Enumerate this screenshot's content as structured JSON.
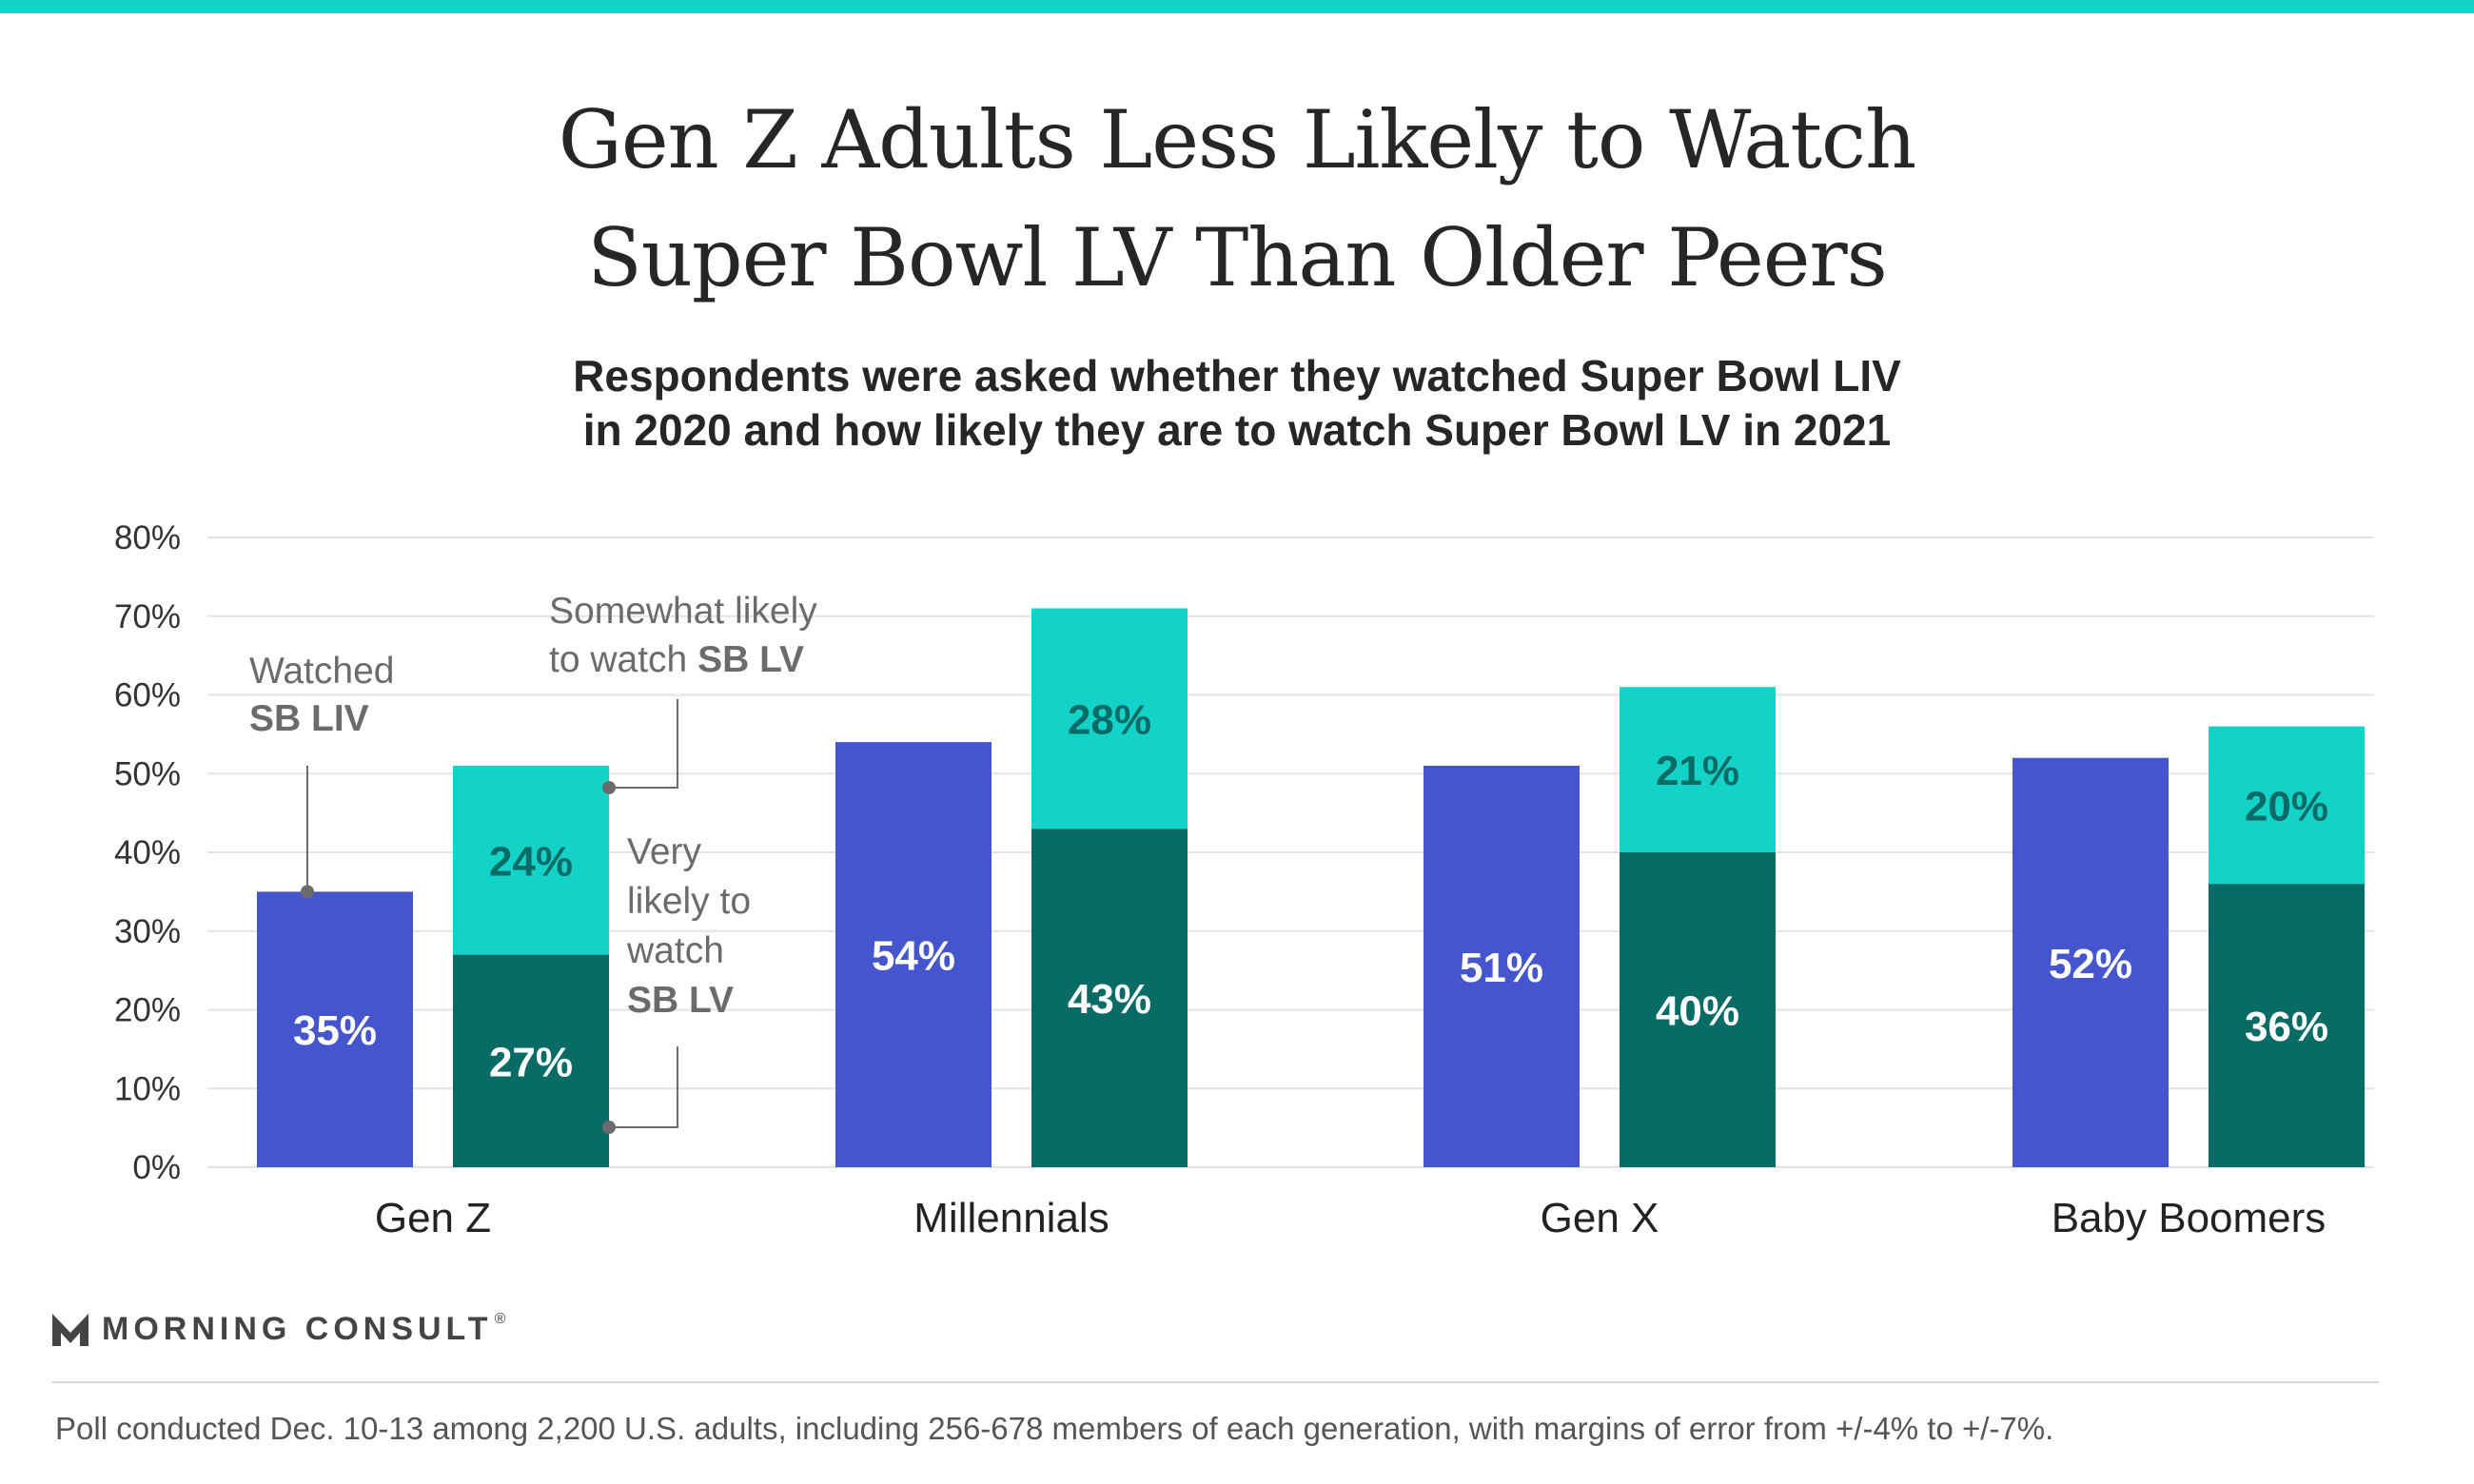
{
  "title_lines": [
    "Gen Z Adults Less Likely to Watch",
    "Super Bowl LV Than Older Peers"
  ],
  "subtitle_lines": [
    "Respondents were asked whether they watched Super Bowl LIV",
    "in 2020 and how likely they are to watch Super Bowl LV in 2021"
  ],
  "colors": {
    "watched": "#4555ce",
    "very_likely": "#086b66",
    "somewhat_likely": "#13d3c8",
    "grid": "#e3e3e3",
    "annotation": "#6b6b6b",
    "top_bar": "#13d3c8"
  },
  "chart_data": {
    "type": "bar",
    "categories": [
      "Gen Z",
      "Millennials",
      "Gen X",
      "Baby Boomers"
    ],
    "series": [
      {
        "name": "Watched SB LIV",
        "values": [
          35,
          54,
          51,
          52
        ],
        "labels": [
          "35%",
          "54%",
          "51%",
          "52%"
        ]
      },
      {
        "name": "Very likely to watch SB LV",
        "values": [
          27,
          43,
          40,
          36
        ],
        "labels": [
          "27%",
          "43%",
          "40%",
          "36%"
        ],
        "stack": "sb_lv"
      },
      {
        "name": "Somewhat likely to watch SB LV",
        "values": [
          24,
          28,
          21,
          20
        ],
        "labels": [
          "24%",
          "28%",
          "21%",
          "20%"
        ],
        "stack": "sb_lv"
      }
    ],
    "ylim": [
      0,
      80
    ],
    "yticks": [
      "0%",
      "10%",
      "20%",
      "30%",
      "40%",
      "50%",
      "60%",
      "70%",
      "80%"
    ],
    "grid": true,
    "annotations": {
      "watched": [
        "Watched",
        "SB LIV"
      ],
      "somewhat": [
        "Somewhat likely",
        "to watch ",
        "SB LV"
      ],
      "very": [
        "Very",
        "likely to",
        "watch",
        "SB LV"
      ]
    }
  },
  "branding": {
    "logo_text": "MORNING CONSULT",
    "logo_mark": "®",
    "logo_icon": "morning-consult-m-icon"
  },
  "footnote": "Poll conducted Dec. 10-13 among 2,200 U.S. adults, including 256-678 members of each generation, with margins of error from +/-4% to +/-7%."
}
